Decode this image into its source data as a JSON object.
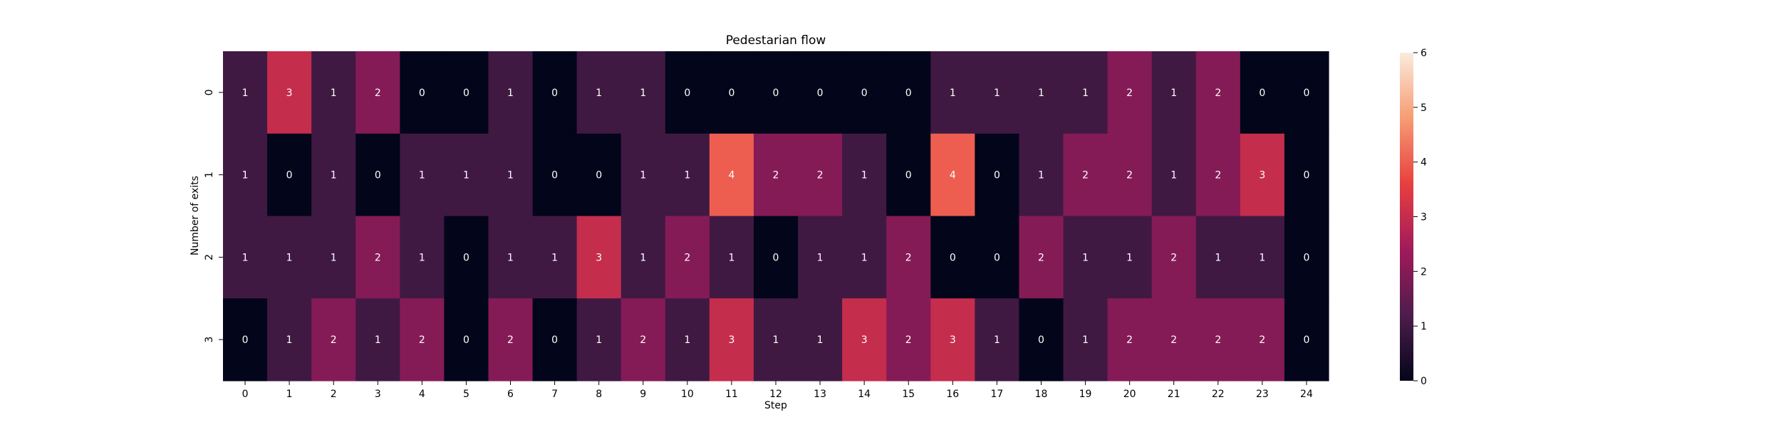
{
  "chart_data": {
    "type": "heatmap",
    "title": "Pedestarian flow",
    "xlabel": "Step",
    "ylabel": "Number of exits",
    "x_categories": [
      "0",
      "1",
      "2",
      "3",
      "4",
      "5",
      "6",
      "7",
      "8",
      "9",
      "10",
      "11",
      "12",
      "13",
      "14",
      "15",
      "16",
      "17",
      "18",
      "19",
      "20",
      "21",
      "22",
      "23",
      "24"
    ],
    "y_categories": [
      "0",
      "1",
      "2",
      "3"
    ],
    "values": [
      [
        1,
        3,
        1,
        2,
        0,
        0,
        1,
        0,
        1,
        1,
        0,
        0,
        0,
        0,
        0,
        0,
        1,
        1,
        1,
        1,
        2,
        1,
        2,
        0,
        0
      ],
      [
        1,
        0,
        1,
        0,
        1,
        1,
        1,
        0,
        0,
        1,
        1,
        4,
        2,
        2,
        1,
        0,
        4,
        0,
        1,
        2,
        2,
        1,
        2,
        3,
        0
      ],
      [
        1,
        1,
        1,
        2,
        1,
        0,
        1,
        1,
        3,
        1,
        2,
        1,
        0,
        1,
        1,
        2,
        0,
        0,
        2,
        1,
        1,
        2,
        1,
        1,
        0
      ],
      [
        0,
        1,
        2,
        1,
        2,
        0,
        2,
        0,
        1,
        2,
        1,
        3,
        1,
        1,
        3,
        2,
        3,
        1,
        0,
        1,
        2,
        2,
        2,
        2,
        0
      ]
    ],
    "annotations": true,
    "colormap": "rocket",
    "vmin": 0,
    "vmax": 6,
    "colorbar_ticks": [
      "0",
      "1",
      "2",
      "3",
      "4",
      "5",
      "6"
    ],
    "colorbar_stops": [
      "#03051a",
      "#4c1d4b",
      "#a11a5b",
      "#e83f3f",
      "#f69c73",
      "#faebdd"
    ]
  }
}
